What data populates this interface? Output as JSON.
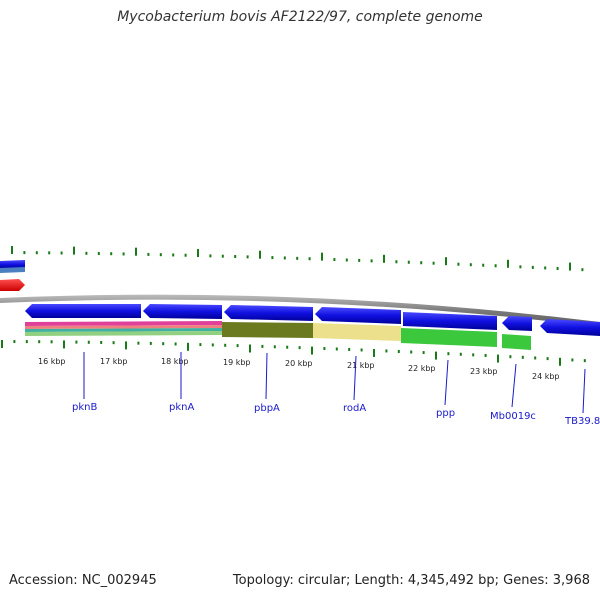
{
  "title": "Mycobacterium bovis AF2122/97, complete genome",
  "footer": {
    "accession": "Accession: NC_002945",
    "stats": "Topology: circular; Length: 4,345,492 bp; Genes: 3,968"
  },
  "scale": {
    "unit": "kbp",
    "labels": [
      "16 kbp",
      "17 kbp",
      "18 kbp",
      "19 kbp",
      "20 kbp",
      "21 kbp",
      "22 kbp",
      "23 kbp",
      "24 kbp"
    ]
  },
  "genes": [
    {
      "name": "pknB"
    },
    {
      "name": "pknA"
    },
    {
      "name": "pbpA"
    },
    {
      "name": "rodA"
    },
    {
      "name": "ppp"
    },
    {
      "name": "Mb0019c"
    },
    {
      "name": "TB39.8"
    }
  ],
  "colors": {
    "gene": "#1010e0",
    "backbone": "#8a8a8a",
    "tick": "#1a7a1a",
    "label": "#1a1acc",
    "feature_red": "#ee1111"
  }
}
